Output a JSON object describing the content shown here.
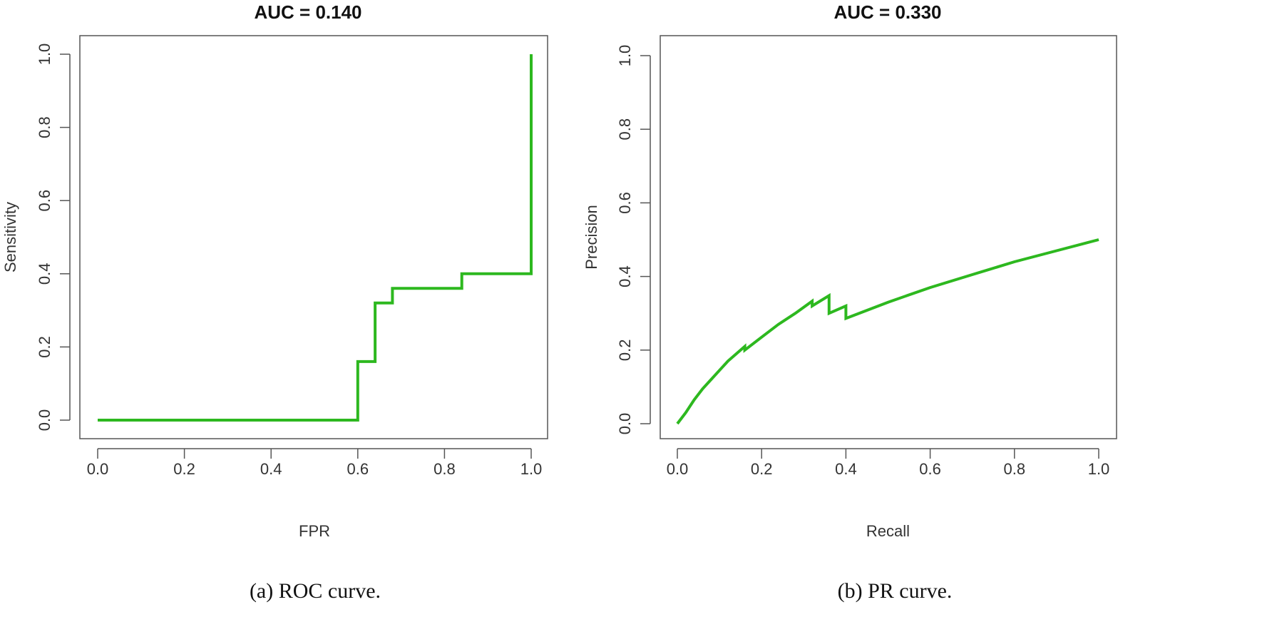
{
  "colors": {
    "curve": "#2db81f"
  },
  "chart_data": [
    {
      "type": "line",
      "title": "AUC = 0.140",
      "xlabel": "FPR",
      "ylabel": "Sensitivity",
      "caption": "(a) ROC curve.",
      "xlim": [
        0,
        1
      ],
      "ylim": [
        0,
        1
      ],
      "x_ticks": [
        "0.0",
        "0.2",
        "0.4",
        "0.6",
        "0.8",
        "1.0"
      ],
      "y_ticks": [
        "0.0",
        "0.2",
        "0.4",
        "0.6",
        "0.8",
        "1.0"
      ],
      "grid": false,
      "series": [
        {
          "x": [
            0.0,
            0.6,
            0.6,
            0.64,
            0.64,
            0.68,
            0.68,
            0.84,
            0.84,
            1.0,
            1.0
          ],
          "y": [
            0.0,
            0.0,
            0.16,
            0.16,
            0.32,
            0.32,
            0.36,
            0.36,
            0.4,
            0.4,
            1.0
          ]
        }
      ]
    },
    {
      "type": "line",
      "title": "AUC = 0.330",
      "xlabel": "Recall",
      "ylabel": "Precision",
      "caption": "(b) PR curve.",
      "xlim": [
        0,
        1
      ],
      "ylim": [
        0,
        1
      ],
      "x_ticks": [
        "0.0",
        "0.2",
        "0.4",
        "0.6",
        "0.8",
        "1.0"
      ],
      "y_ticks": [
        "0.0",
        "0.2",
        "0.4",
        "0.6",
        "0.8",
        "1.0"
      ],
      "grid": false,
      "series": [
        {
          "x": [
            0.0,
            0.02,
            0.04,
            0.06,
            0.08,
            0.1,
            0.12,
            0.14,
            0.16,
            0.16,
            0.2,
            0.24,
            0.28,
            0.32,
            0.32,
            0.36,
            0.36,
            0.4,
            0.4,
            0.5,
            0.6,
            0.7,
            0.8,
            0.9,
            1.0
          ],
          "y": [
            0.0,
            0.03,
            0.065,
            0.095,
            0.12,
            0.145,
            0.17,
            0.19,
            0.21,
            0.2,
            0.235,
            0.27,
            0.3,
            0.333,
            0.32,
            0.348,
            0.3,
            0.32,
            0.286,
            0.33,
            0.37,
            0.405,
            0.44,
            0.47,
            0.5
          ]
        }
      ]
    }
  ]
}
